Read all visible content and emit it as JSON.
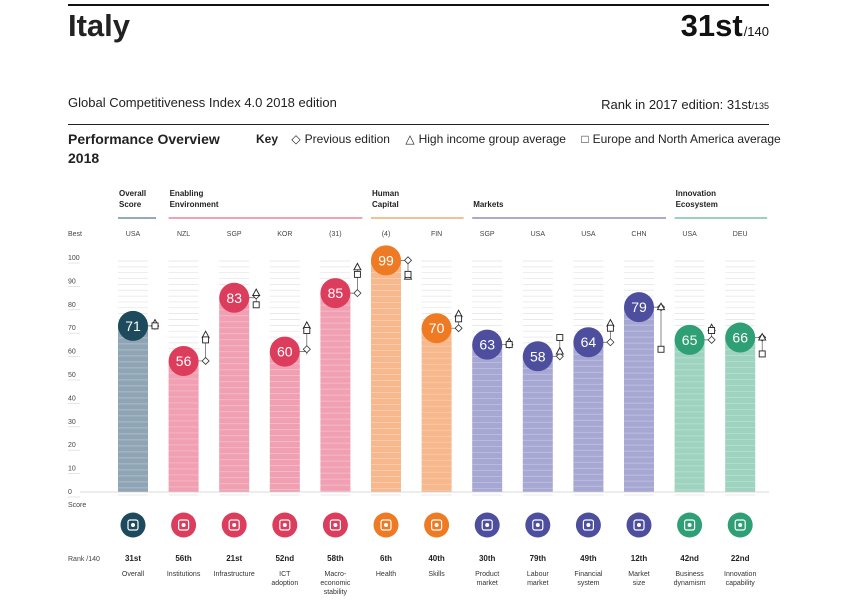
{
  "header": {
    "country": "Italy",
    "rank": "31st",
    "rank_total": "/140",
    "edition": "Global Competitiveness Index 4.0 2018 edition",
    "previous_rank_label": "Rank in 2017 edition: 31st",
    "previous_rank_total": "/135"
  },
  "overview": {
    "title_line1": "Performance Overview",
    "title_line2": "2018"
  },
  "key": {
    "title": "Key",
    "previous": "Previous edition",
    "high_income": "High income group average",
    "europe": "Europe and North America average",
    "previous_symbol": "◇",
    "high_income_symbol": "△",
    "europe_symbol": "□"
  },
  "labels": {
    "best": "Best",
    "score": "Score",
    "rank": "Rank /140"
  },
  "groups": [
    {
      "name": "Overall Score",
      "lines": [
        "Overall",
        "Score"
      ],
      "color": "#2b5a70",
      "start": 0,
      "end": 0
    },
    {
      "name": "Enabling Environment",
      "lines": [
        "Enabling",
        "Environment"
      ],
      "color": "#d9476a",
      "start": 1,
      "end": 4
    },
    {
      "name": "Human Capital",
      "lines": [
        "Human",
        "Capital"
      ],
      "color": "#f07f2c",
      "start": 5,
      "end": 6
    },
    {
      "name": "Markets",
      "lines": [
        "Markets"
      ],
      "color": "#5655a3",
      "start": 7,
      "end": 10
    },
    {
      "name": "Innovation Ecosystem",
      "lines": [
        "Innovation",
        "Ecosystem"
      ],
      "color": "#34a57e",
      "start": 11,
      "end": 12
    }
  ],
  "chart_data": {
    "type": "bar",
    "ylim": [
      0,
      100
    ],
    "yticks": [
      0,
      10,
      20,
      30,
      40,
      50,
      60,
      70,
      80,
      90,
      100
    ],
    "categories": [
      "Overall",
      "Institutions",
      "Infrastructure",
      "ICT adoption",
      "Macro-economic stability",
      "Health",
      "Skills",
      "Product market",
      "Labour market",
      "Financial system",
      "Market size",
      "Business dynamism",
      "Innovation capability"
    ],
    "category_lines": [
      [
        "Overall"
      ],
      [
        "Institutions"
      ],
      [
        "Infrastructure"
      ],
      [
        "ICT",
        "adoption"
      ],
      [
        "Macro-",
        "economic",
        "stability"
      ],
      [
        "Health"
      ],
      [
        "Skills"
      ],
      [
        "Product",
        "market"
      ],
      [
        "Labour",
        "market"
      ],
      [
        "Financial",
        "system"
      ],
      [
        "Market",
        "size"
      ],
      [
        "Business",
        "dynamism"
      ],
      [
        "Innovation",
        "capability"
      ]
    ],
    "icons": [
      "medal-icon",
      "institutions-icon",
      "infrastructure-icon",
      "ict-chip-icon",
      "percent-icon",
      "heart-pulse-icon",
      "skills-icon",
      "tag-icon",
      "labour-people-icon",
      "credit-card-icon",
      "expand-arrows-icon",
      "business-building-icon",
      "lightbulb-icon"
    ],
    "best_performers": [
      "USA",
      "NZL",
      "SGP",
      "KOR",
      "(31)",
      "(4)",
      "FIN",
      "SGP",
      "USA",
      "USA",
      "CHN",
      "USA",
      "DEU"
    ],
    "series": [
      {
        "name": "Score",
        "values": [
          71,
          56,
          83,
          60,
          85,
          99,
          70,
          63,
          58,
          64,
          79,
          65,
          66
        ]
      },
      {
        "name": "Previous edition",
        "values": [
          71,
          56,
          84,
          61,
          85,
          99,
          70,
          63,
          58,
          64,
          79,
          65,
          66
        ]
      },
      {
        "name": "High income group average",
        "values": [
          72,
          67,
          85,
          71,
          96,
          92,
          76,
          64,
          60,
          72,
          79,
          70,
          66
        ]
      },
      {
        "name": "Europe and North America average",
        "values": [
          71,
          65,
          80,
          69,
          93,
          93,
          74,
          63,
          66,
          70,
          61,
          69,
          59
        ]
      }
    ],
    "ranks": [
      "31st",
      "56th",
      "21st",
      "52nd",
      "58th",
      "6th",
      "40th",
      "30th",
      "79th",
      "49th",
      "12th",
      "42nd",
      "22nd"
    ],
    "bar_colors": [
      "#8fa4b4",
      "#f0a0b2",
      "#f0a0b2",
      "#f0a0b2",
      "#f0a0b2",
      "#f7b88e",
      "#f7b88e",
      "#a7a7d3",
      "#a7a7d3",
      "#a7a7d3",
      "#a7a7d3",
      "#9dd3bf",
      "#9dd3bf"
    ],
    "circle_colors": [
      "#1d4a5d",
      "#dc3d5c",
      "#dc3d5c",
      "#dc3d5c",
      "#dc3d5c",
      "#ee7a23",
      "#ee7a23",
      "#4e4e9f",
      "#4e4e9f",
      "#4e4e9f",
      "#4e4e9f",
      "#2f9f75",
      "#2f9f75"
    ]
  }
}
